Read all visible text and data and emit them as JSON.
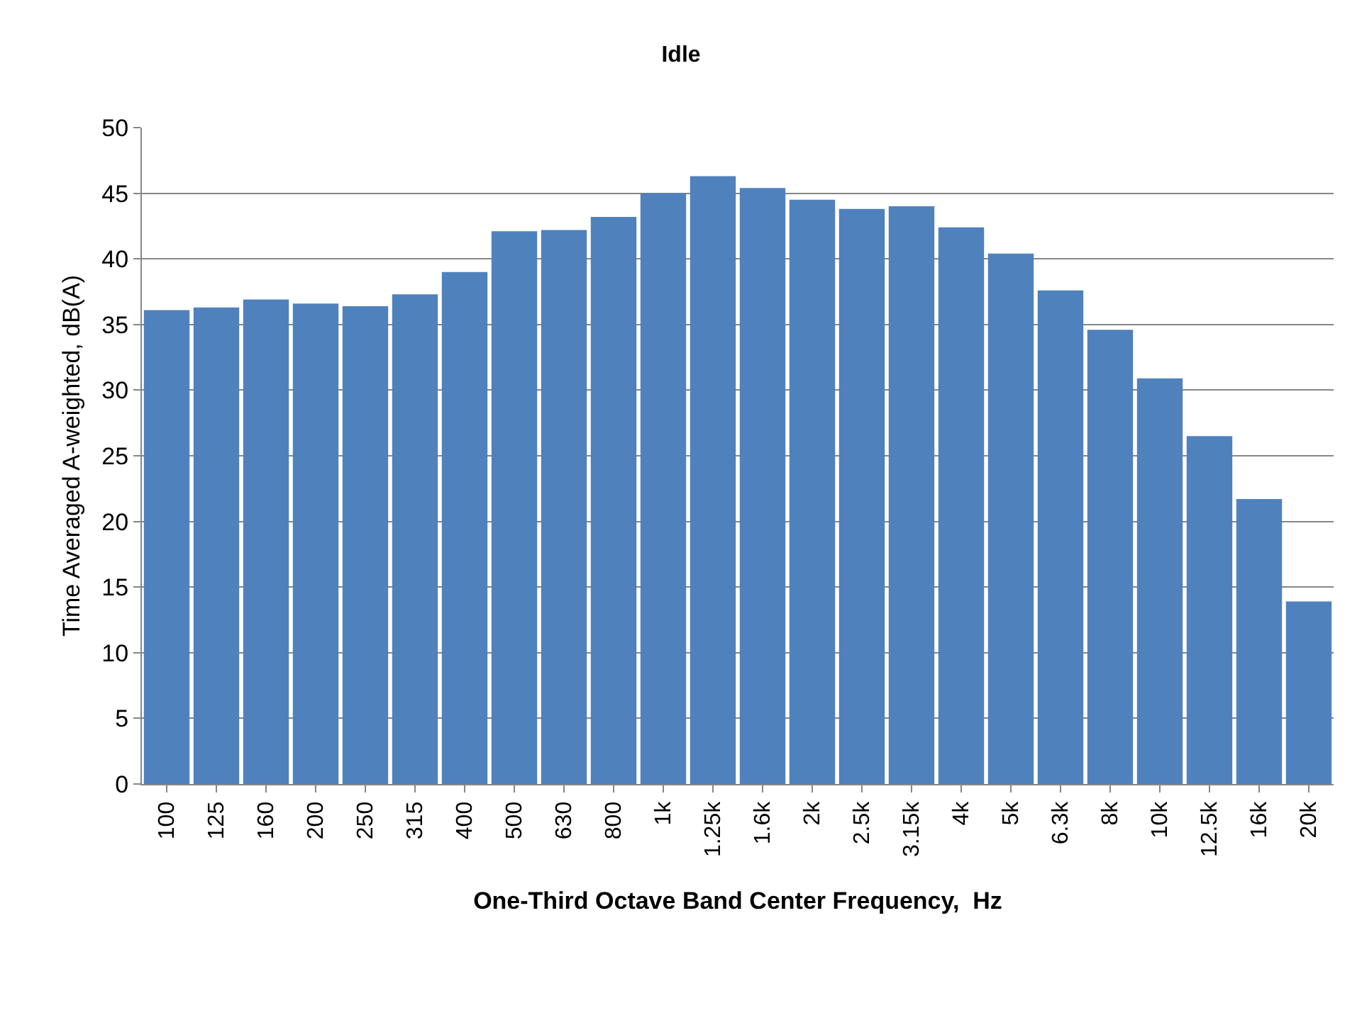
{
  "chart_data": {
    "type": "bar",
    "title": "Idle",
    "xlabel": "One-Third Octave Band Center Frequency,  Hz",
    "ylabel": "Time Averaged A-weighted, dB(A)",
    "categories": [
      "100",
      "125",
      "160",
      "200",
      "250",
      "315",
      "400",
      "500",
      "630",
      "800",
      "1k",
      "1.25k",
      "1.6k",
      "2k",
      "2.5k",
      "3.15k",
      "4k",
      "5k",
      "6.3k",
      "8k",
      "10k",
      "12.5k",
      "16k",
      "20k"
    ],
    "values": [
      36.1,
      36.3,
      36.9,
      36.6,
      36.4,
      37.3,
      39.0,
      42.1,
      42.2,
      43.2,
      45.0,
      46.3,
      45.4,
      44.5,
      43.8,
      44.0,
      42.4,
      40.4,
      37.6,
      34.6,
      30.9,
      26.5,
      21.7,
      13.9
    ],
    "color": "#4f81bd",
    "ylim": [
      0,
      50
    ],
    "yticks": [
      0,
      5,
      10,
      15,
      20,
      25,
      30,
      35,
      40,
      45,
      50
    ],
    "grid": "y"
  }
}
